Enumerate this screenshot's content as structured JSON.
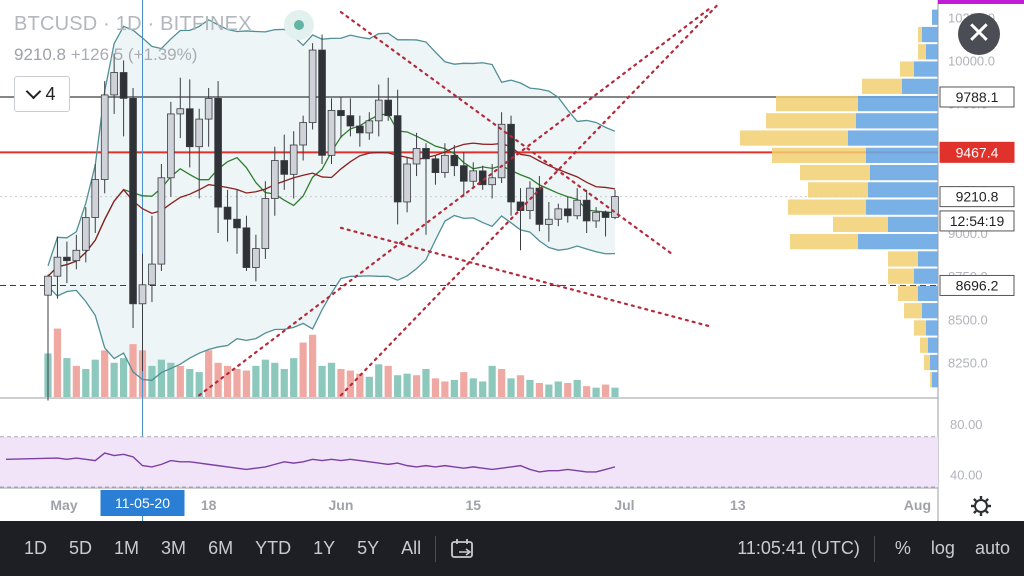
{
  "header": {
    "title": "BTCUSD · 1D · BITFINEX",
    "price": "9210.8",
    "change": "+126.5 (+1.39%)",
    "indicator_count": "4"
  },
  "price_badges": [
    {
      "label": "9788.1",
      "value": 9788.1,
      "bg": "#ffffff",
      "fg": "#222222",
      "border": "#555555"
    },
    {
      "label": "9467.4",
      "value": 9467.4,
      "bg": "#e0312b",
      "fg": "#ffffff",
      "border": "#e0312b"
    },
    {
      "label": "9210.8",
      "value": 9210.8,
      "bg": "#ffffff",
      "fg": "#222222",
      "border": "#555555"
    },
    {
      "label": "12:54:19",
      "value": 9070,
      "bg": "#ffffff",
      "fg": "#222222",
      "border": "#555555"
    },
    {
      "label": "8696.2",
      "value": 8696.2,
      "bg": "#ffffff",
      "fg": "#222222",
      "border": "#555555"
    }
  ],
  "toolbar": {
    "timeframes": [
      "1D",
      "5D",
      "1M",
      "3M",
      "6M",
      "YTD",
      "1Y",
      "5Y",
      "All"
    ],
    "clock": "11:05:41 (UTC)",
    "percent": "%",
    "log": "log",
    "auto": "auto"
  },
  "colors": {
    "up": "#cfd2d8",
    "down": "#2f3237",
    "vol_up": "#8dc8bd",
    "vol_down": "#f0a8a3",
    "bb_band": "#4f8f98",
    "bb_fill": "#eef5f6",
    "ma_short": "#2f7d2f",
    "ma_long": "#8b2020",
    "trend": "#b52a3a",
    "rsi_line": "#7b3fa6",
    "rsi_fill": "#f1e4f8",
    "vp_left": "#f2cf72",
    "vp_right": "#6aa8e4"
  },
  "chart_data": {
    "type": "candlestick",
    "title": "BTCUSD · 1D · BITFINEX",
    "ylim": [
      8050,
      10350
    ],
    "y_ticks": [
      8250,
      8500,
      8750,
      9000,
      9250,
      9500,
      9750,
      10000,
      10250
    ],
    "y_tick_labels": [
      "8250.0",
      "8500.0",
      "8750.0",
      "9000.0",
      "9250.0",
      "9500.0",
      "9750.0",
      "10000.0",
      "10250.0"
    ],
    "x_labels": [
      {
        "label": "May",
        "index": 0
      },
      {
        "label": "11-05-20",
        "index": 10
      },
      {
        "label": "18",
        "index": 17
      },
      {
        "label": "Jun",
        "index": 31
      },
      {
        "label": "15",
        "index": 45
      },
      {
        "label": "Jul",
        "index": 61
      },
      {
        "label": "13",
        "index": 73
      },
      {
        "label": "Aug",
        "index": 92
      }
    ],
    "candles": [
      [
        8640,
        8760,
        8030,
        8750
      ],
      [
        8750,
        8980,
        8620,
        8860
      ],
      [
        8860,
        8950,
        8710,
        8840
      ],
      [
        8840,
        8990,
        8790,
        8900
      ],
      [
        8900,
        9150,
        8830,
        9090
      ],
      [
        9090,
        9400,
        9000,
        9310
      ],
      [
        9310,
        9880,
        9230,
        9800
      ],
      [
        9800,
        10040,
        9690,
        9930
      ],
      [
        9930,
        10000,
        9560,
        9780
      ],
      [
        9780,
        9840,
        8450,
        8590
      ],
      [
        8590,
        8880,
        8200,
        8700
      ],
      [
        8700,
        9100,
        8600,
        8820
      ],
      [
        8820,
        9400,
        8780,
        9320
      ],
      [
        9320,
        9760,
        9210,
        9690
      ],
      [
        9690,
        9900,
        9550,
        9720
      ],
      [
        9720,
        9890,
        9380,
        9500
      ],
      [
        9500,
        9720,
        9200,
        9660
      ],
      [
        9660,
        9840,
        9500,
        9780
      ],
      [
        9780,
        9880,
        9000,
        9150
      ],
      [
        9150,
        9250,
        8950,
        9080
      ],
      [
        9080,
        9250,
        8880,
        9030
      ],
      [
        9030,
        9100,
        8780,
        8800
      ],
      [
        8800,
        8990,
        8720,
        8910
      ],
      [
        8910,
        9300,
        8850,
        9200
      ],
      [
        9200,
        9500,
        9100,
        9420
      ],
      [
        9420,
        9570,
        9250,
        9340
      ],
      [
        9340,
        9590,
        9200,
        9510
      ],
      [
        9510,
        9680,
        9420,
        9640
      ],
      [
        9640,
        10100,
        9600,
        10060
      ],
      [
        10060,
        10150,
        9400,
        9450
      ],
      [
        9450,
        9780,
        9400,
        9710
      ],
      [
        9710,
        9790,
        9550,
        9680
      ],
      [
        9680,
        9780,
        9560,
        9620
      ],
      [
        9620,
        9680,
        9500,
        9580
      ],
      [
        9580,
        9700,
        9540,
        9650
      ],
      [
        9650,
        9860,
        9560,
        9770
      ],
      [
        9770,
        9900,
        9650,
        9680
      ],
      [
        9680,
        9830,
        9050,
        9180
      ],
      [
        9180,
        9440,
        9120,
        9400
      ],
      [
        9400,
        9580,
        9330,
        9490
      ],
      [
        9490,
        9520,
        8990,
        9430
      ],
      [
        9430,
        9450,
        9280,
        9350
      ],
      [
        9350,
        9520,
        9320,
        9450
      ],
      [
        9450,
        9510,
        9330,
        9390
      ],
      [
        9390,
        9470,
        9210,
        9300
      ],
      [
        9300,
        9410,
        9270,
        9360
      ],
      [
        9360,
        9390,
        9250,
        9280
      ],
      [
        9280,
        9400,
        9200,
        9320
      ],
      [
        9320,
        9700,
        9290,
        9630
      ],
      [
        9630,
        9680,
        9100,
        9180
      ],
      [
        9180,
        9260,
        8900,
        9130
      ],
      [
        9130,
        9300,
        9080,
        9260
      ],
      [
        9260,
        9330,
        9010,
        9050
      ],
      [
        9050,
        9180,
        8950,
        9080
      ],
      [
        9080,
        9170,
        9040,
        9140
      ],
      [
        9140,
        9210,
        9060,
        9100
      ],
      [
        9100,
        9260,
        9080,
        9190
      ],
      [
        9190,
        9250,
        9000,
        9070
      ],
      [
        9070,
        9150,
        9030,
        9120
      ],
      [
        9120,
        9130,
        8980,
        9090
      ],
      [
        9090,
        9250,
        9080,
        9211
      ]
    ],
    "volume": [
      [
        28,
        1
      ],
      [
        44,
        0
      ],
      [
        25,
        1
      ],
      [
        20,
        0
      ],
      [
        18,
        1
      ],
      [
        24,
        1
      ],
      [
        30,
        0
      ],
      [
        22,
        1
      ],
      [
        25,
        1
      ],
      [
        34,
        0
      ],
      [
        30,
        0
      ],
      [
        20,
        1
      ],
      [
        24,
        1
      ],
      [
        22,
        1
      ],
      [
        20,
        0
      ],
      [
        18,
        1
      ],
      [
        16,
        1
      ],
      [
        30,
        0
      ],
      [
        22,
        0
      ],
      [
        20,
        0
      ],
      [
        18,
        0
      ],
      [
        17,
        0
      ],
      [
        20,
        1
      ],
      [
        24,
        1
      ],
      [
        22,
        1
      ],
      [
        18,
        1
      ],
      [
        25,
        1
      ],
      [
        35,
        0
      ],
      [
        40,
        0
      ],
      [
        20,
        1
      ],
      [
        22,
        1
      ],
      [
        18,
        0
      ],
      [
        17,
        0
      ],
      [
        15,
        0
      ],
      [
        13,
        1
      ],
      [
        21,
        1
      ],
      [
        20,
        0
      ],
      [
        14,
        1
      ],
      [
        15,
        1
      ],
      [
        14,
        0
      ],
      [
        18,
        1
      ],
      [
        12,
        0
      ],
      [
        10,
        0
      ],
      [
        11,
        1
      ],
      [
        16,
        0
      ],
      [
        12,
        1
      ],
      [
        10,
        1
      ],
      [
        20,
        1
      ],
      [
        18,
        0
      ],
      [
        12,
        1
      ],
      [
        14,
        0
      ],
      [
        11,
        1
      ],
      [
        9,
        0
      ],
      [
        8,
        1
      ],
      [
        10,
        1
      ],
      [
        9,
        0
      ],
      [
        11,
        1
      ],
      [
        7,
        0
      ],
      [
        6,
        1
      ],
      [
        8,
        0
      ],
      [
        6,
        1
      ]
    ],
    "rsi": [
      52,
      53,
      52,
      53,
      52,
      51,
      57,
      55,
      56,
      54,
      47,
      46,
      48,
      51,
      50,
      50,
      49,
      48,
      47,
      46,
      45,
      44,
      45,
      46,
      48,
      50,
      49,
      50,
      52,
      51,
      52,
      51,
      52,
      51,
      50,
      49,
      48,
      49,
      47,
      46,
      47,
      46,
      47,
      46,
      45,
      46,
      45,
      44,
      45,
      46,
      47,
      44,
      42,
      43,
      43,
      44,
      43,
      42,
      42,
      44,
      46
    ],
    "rsi_ylim": [
      30,
      100
    ],
    "rsi_ticks": [
      40,
      80
    ],
    "rsi_tick_labels": [
      "40.00",
      "80.00"
    ],
    "rsi_bands": [
      30,
      70
    ],
    "volume_profile": [
      [
        10300,
        10200,
        0,
        6
      ],
      [
        10200,
        10100,
        4,
        16
      ],
      [
        10100,
        10000,
        8,
        12
      ],
      [
        10000,
        9900,
        14,
        24
      ],
      [
        9900,
        9800,
        40,
        36
      ],
      [
        9800,
        9700,
        82,
        80
      ],
      [
        9700,
        9600,
        90,
        82
      ],
      [
        9600,
        9500,
        108,
        90
      ],
      [
        9500,
        9400,
        94,
        72
      ],
      [
        9400,
        9300,
        70,
        68
      ],
      [
        9300,
        9200,
        60,
        70
      ],
      [
        9200,
        9100,
        78,
        72
      ],
      [
        9100,
        9000,
        55,
        50
      ],
      [
        9000,
        8900,
        68,
        80
      ],
      [
        8900,
        8800,
        30,
        20
      ],
      [
        8800,
        8700,
        26,
        24
      ],
      [
        8700,
        8600,
        20,
        20
      ],
      [
        8600,
        8500,
        18,
        16
      ],
      [
        8500,
        8400,
        12,
        12
      ],
      [
        8400,
        8300,
        8,
        10
      ],
      [
        8300,
        8200,
        6,
        8
      ],
      [
        8200,
        8100,
        2,
        6
      ]
    ],
    "levels": [
      9788.1,
      9467.4,
      9210.8,
      8696.2
    ],
    "trendlines": [
      [
        [
          31,
          10280
        ],
        [
          66,
          8880
        ]
      ],
      [
        [
          31,
          9030
        ],
        [
          70,
          8460
        ]
      ],
      [
        [
          31,
          8060
        ],
        [
          71,
          10330
        ]
      ],
      [
        [
          16,
          8060
        ],
        [
          70,
          10300
        ]
      ]
    ]
  }
}
